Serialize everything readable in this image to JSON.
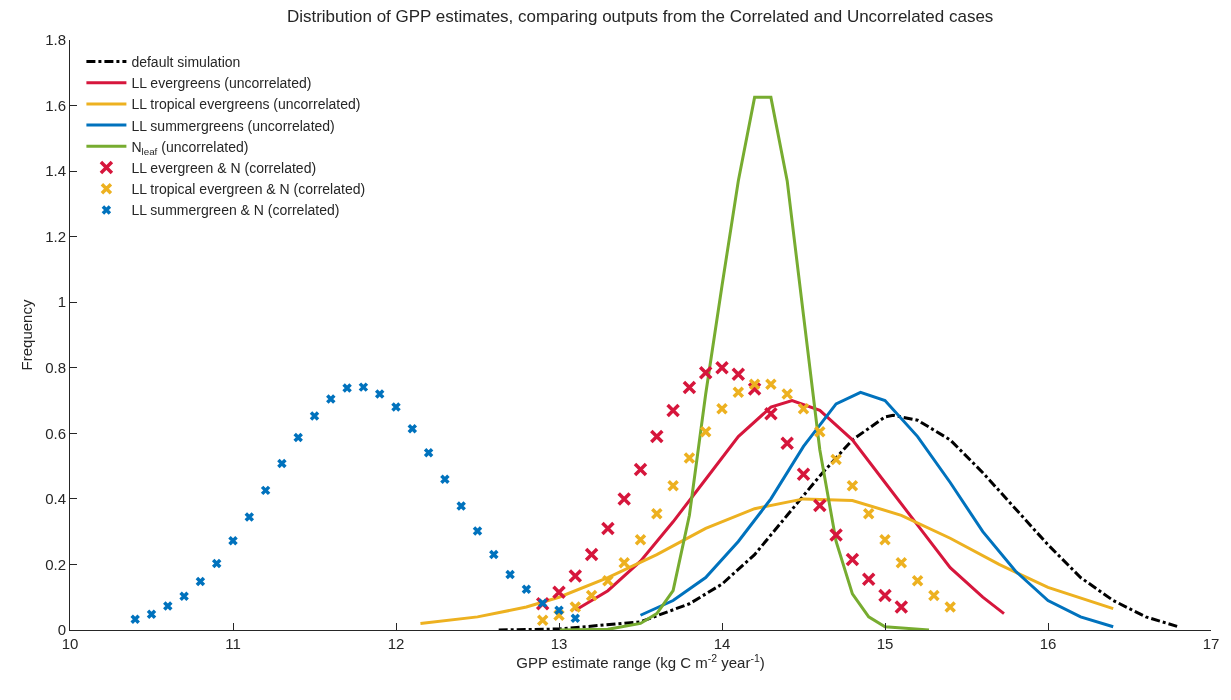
{
  "chart_data": {
    "type": "line",
    "title": "Distribution of GPP estimates, comparing outputs from the Correlated and Uncorrelated cases",
    "xlabel": "GPP estimate range (kg C m$^{-2}$ year$^{-1}$)",
    "ylabel": "Frequency",
    "xlim": [
      10,
      17
    ],
    "xticks": [
      10,
      11,
      12,
      13,
      14,
      15,
      16,
      17
    ],
    "ylim": [
      0,
      1.8
    ],
    "yticks": [
      0,
      0.2,
      0.4,
      0.6,
      0.8,
      1,
      1.2,
      1.4,
      1.6,
      1.8
    ],
    "grid": false,
    "legend": "top left",
    "series": [
      {
        "name": "default simulation",
        "color": "#000000",
        "line_style": "dashdot",
        "marker": "none",
        "x": [
          12.63,
          13.0,
          13.5,
          13.8,
          14.0,
          14.2,
          14.4,
          14.6,
          14.8,
          15.0,
          15.05,
          15.2,
          15.4,
          15.6,
          15.8,
          16.0,
          16.2,
          16.4,
          16.6,
          16.8
        ],
        "values": [
          0,
          0.003,
          0.025,
          0.08,
          0.14,
          0.23,
          0.35,
          0.47,
          0.58,
          0.65,
          0.655,
          0.64,
          0.58,
          0.48,
          0.37,
          0.26,
          0.16,
          0.09,
          0.04,
          0.01
        ]
      },
      {
        "name": "LL evergreens (uncorrelated)",
        "color": "#d6163c",
        "line_style": "solid",
        "marker": "none",
        "x": [
          13.1,
          13.3,
          13.5,
          13.7,
          13.9,
          14.1,
          14.3,
          14.43,
          14.6,
          14.8,
          15.0,
          15.2,
          15.4,
          15.6,
          15.73
        ],
        "values": [
          0.06,
          0.12,
          0.21,
          0.33,
          0.46,
          0.59,
          0.68,
          0.7,
          0.67,
          0.58,
          0.45,
          0.32,
          0.19,
          0.1,
          0.05
        ]
      },
      {
        "name": "LL tropical evergreens (uncorrelated)",
        "color": "#edb120",
        "line_style": "solid",
        "marker": "none",
        "x": [
          12.15,
          12.5,
          12.8,
          13.0,
          13.3,
          13.6,
          13.9,
          14.2,
          14.5,
          14.8,
          15.1,
          15.4,
          15.7,
          16.0,
          16.4
        ],
        "values": [
          0.02,
          0.04,
          0.07,
          0.1,
          0.16,
          0.23,
          0.31,
          0.37,
          0.4,
          0.395,
          0.35,
          0.28,
          0.2,
          0.13,
          0.065
        ]
      },
      {
        "name": "LL summergreens (uncorrelated)",
        "color": "#0072bd",
        "line_style": "solid",
        "marker": "none",
        "x": [
          13.5,
          13.7,
          13.9,
          14.1,
          14.3,
          14.5,
          14.7,
          14.85,
          15.0,
          15.2,
          15.4,
          15.6,
          15.8,
          16.0,
          16.2,
          16.4
        ],
        "values": [
          0.045,
          0.09,
          0.16,
          0.27,
          0.4,
          0.56,
          0.69,
          0.725,
          0.7,
          0.59,
          0.45,
          0.3,
          0.18,
          0.09,
          0.04,
          0.01
        ]
      },
      {
        "name": "N$_{leaf}$ (uncorrelated)",
        "color": "#77ac30",
        "line_style": "solid",
        "marker": "none",
        "x": [
          13.0,
          13.3,
          13.5,
          13.6,
          13.7,
          13.8,
          13.9,
          14.0,
          14.1,
          14.2,
          14.3,
          14.4,
          14.5,
          14.6,
          14.7,
          14.8,
          14.9,
          15.0,
          15.27
        ],
        "values": [
          0,
          0.002,
          0.02,
          0.05,
          0.12,
          0.35,
          0.72,
          1.05,
          1.37,
          1.625,
          1.625,
          1.37,
          0.96,
          0.55,
          0.27,
          0.11,
          0.04,
          0.01,
          0
        ]
      },
      {
        "name": "LL evergreen & N (correlated)",
        "type": "scatter",
        "color": "#d6163c",
        "marker": "cross",
        "x": [
          12.9,
          13.0,
          13.1,
          13.2,
          13.3,
          13.4,
          13.5,
          13.6,
          13.7,
          13.8,
          13.9,
          14.0,
          14.1,
          14.2,
          14.3,
          14.4,
          14.5,
          14.6,
          14.7,
          14.8,
          14.9,
          15.0,
          15.1
        ],
        "values": [
          0.08,
          0.115,
          0.165,
          0.23,
          0.31,
          0.4,
          0.49,
          0.59,
          0.67,
          0.74,
          0.785,
          0.8,
          0.78,
          0.735,
          0.66,
          0.57,
          0.475,
          0.38,
          0.29,
          0.215,
          0.155,
          0.105,
          0.07
        ]
      },
      {
        "name": "LL tropical evergreen & N (correlated)",
        "type": "scatter",
        "color": "#edb120",
        "marker": "cross",
        "x": [
          12.9,
          13.0,
          13.1,
          13.2,
          13.3,
          13.4,
          13.5,
          13.6,
          13.7,
          13.8,
          13.9,
          14.0,
          14.1,
          14.2,
          14.3,
          14.4,
          14.5,
          14.6,
          14.7,
          14.8,
          14.9,
          15.0,
          15.1,
          15.2,
          15.3,
          15.4
        ],
        "values": [
          0.03,
          0.045,
          0.07,
          0.105,
          0.15,
          0.205,
          0.275,
          0.355,
          0.44,
          0.525,
          0.605,
          0.675,
          0.725,
          0.75,
          0.75,
          0.72,
          0.675,
          0.605,
          0.52,
          0.44,
          0.355,
          0.275,
          0.205,
          0.15,
          0.105,
          0.07
        ]
      },
      {
        "name": "LL summergreen & N (correlated)",
        "type": "scatter",
        "color": "#0072bd",
        "marker": "cross",
        "x": [
          10.4,
          10.5,
          10.6,
          10.7,
          10.8,
          10.9,
          11.0,
          11.1,
          11.2,
          11.3,
          11.4,
          11.5,
          11.6,
          11.7,
          11.8,
          11.9,
          12.0,
          12.1,
          12.2,
          12.3,
          12.4,
          12.5,
          12.6,
          12.7,
          12.8,
          12.9,
          13.0,
          13.1
        ],
        "values": [
          0.033,
          0.048,
          0.073,
          0.103,
          0.148,
          0.203,
          0.272,
          0.345,
          0.426,
          0.508,
          0.587,
          0.653,
          0.705,
          0.738,
          0.741,
          0.72,
          0.68,
          0.614,
          0.541,
          0.46,
          0.378,
          0.302,
          0.23,
          0.169,
          0.124,
          0.082,
          0.06,
          0.036
        ]
      }
    ]
  }
}
